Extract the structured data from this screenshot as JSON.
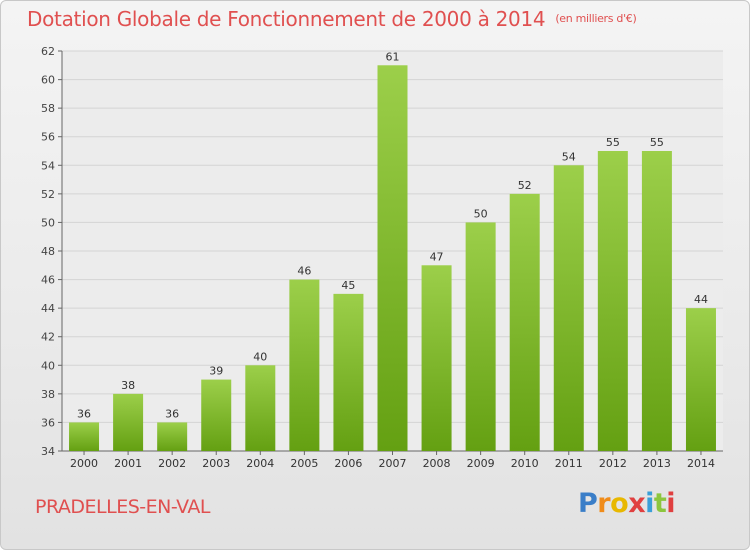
{
  "chart_data": {
    "type": "bar",
    "title": "Dotation Globale de Fonctionnement de 2000 à 2014",
    "subtitle": "(en milliers d'€)",
    "categories": [
      "2000",
      "2001",
      "2002",
      "2003",
      "2004",
      "2005",
      "2006",
      "2007",
      "2008",
      "2009",
      "2010",
      "2011",
      "2012",
      "2013",
      "2014"
    ],
    "values": [
      36,
      38,
      36,
      39,
      40,
      46,
      45,
      61,
      47,
      50,
      52,
      54,
      55,
      55,
      44
    ],
    "ylim": [
      34,
      62
    ],
    "yticks": [
      34,
      36,
      38,
      40,
      42,
      44,
      46,
      48,
      50,
      52,
      54,
      56,
      58,
      60,
      62
    ],
    "grid": true,
    "legend": "none",
    "bar_color_light": "#9ccf4a",
    "bar_color_dark": "#64a012"
  },
  "footer": {
    "commune": "PRADELLES-EN-VAL",
    "logo_letters": [
      "P",
      "r",
      "o",
      "x",
      "i",
      "t",
      "i"
    ],
    "logo_colors": [
      "#3a7ec8",
      "#f08c1a",
      "#e8b800",
      "#e04040",
      "#3a9fd8",
      "#8cc63e",
      "#e04040"
    ]
  },
  "colors": {
    "title": "#e05050",
    "grid": "#d4d4d4",
    "axis": "#666666"
  }
}
